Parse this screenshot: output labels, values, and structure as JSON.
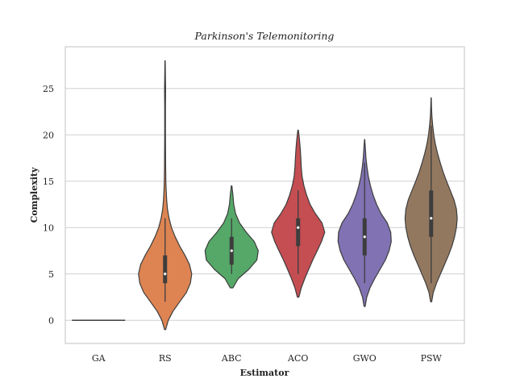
{
  "chart_data": {
    "type": "violin",
    "title": "Parkinson's Telemonitoring",
    "xlabel": "Estimator",
    "ylabel": "Complexity",
    "ylim": [
      -2.5,
      29.5
    ],
    "yticks": [
      0,
      5,
      10,
      15,
      20,
      25
    ],
    "grid": "horizontal",
    "categories": [
      "GA",
      "RS",
      "ABC",
      "ACO",
      "GWO",
      "PSW"
    ],
    "colors": [
      "#4c72b0",
      "#dd8452",
      "#55a868",
      "#c44e52",
      "#8172b3",
      "#937860"
    ],
    "series": [
      {
        "name": "GA",
        "min": 0,
        "q1": 0,
        "median": 0,
        "q3": 0,
        "max": 0,
        "kde_range": [
          0,
          0
        ],
        "density": [
          [
            0,
            1
          ]
        ]
      },
      {
        "name": "RS",
        "min": 2,
        "q1": 4,
        "median": 5,
        "q3": 7,
        "max": 11,
        "kde_range": [
          -1,
          28
        ],
        "density": [
          [
            -1,
            0.02
          ],
          [
            0,
            0.12
          ],
          [
            1,
            0.3
          ],
          [
            2,
            0.55
          ],
          [
            3,
            0.8
          ],
          [
            4,
            0.95
          ],
          [
            5,
            1.0
          ],
          [
            6,
            0.92
          ],
          [
            7,
            0.75
          ],
          [
            8,
            0.55
          ],
          [
            9,
            0.38
          ],
          [
            10,
            0.24
          ],
          [
            11,
            0.15
          ],
          [
            12,
            0.09
          ],
          [
            13,
            0.06
          ],
          [
            14,
            0.04
          ],
          [
            15,
            0.03
          ],
          [
            17,
            0.02
          ],
          [
            20,
            0.015
          ],
          [
            23,
            0.015
          ],
          [
            25,
            0.02
          ],
          [
            26,
            0.015
          ],
          [
            28,
            0.005
          ]
        ]
      },
      {
        "name": "ABC",
        "min": 5,
        "q1": 6,
        "median": 7.5,
        "q3": 9,
        "max": 11,
        "kde_range": [
          3.5,
          14.5
        ],
        "density": [
          [
            3.5,
            0.05
          ],
          [
            4.5,
            0.25
          ],
          [
            5.5,
            0.65
          ],
          [
            6.5,
            0.95
          ],
          [
            7.5,
            1.0
          ],
          [
            8.5,
            0.85
          ],
          [
            9.5,
            0.55
          ],
          [
            10.5,
            0.3
          ],
          [
            11.5,
            0.15
          ],
          [
            12.5,
            0.08
          ],
          [
            13.5,
            0.05
          ],
          [
            14.5,
            0.01
          ]
        ]
      },
      {
        "name": "ACO",
        "min": 5,
        "q1": 8,
        "median": 10,
        "q3": 11,
        "max": 14,
        "kde_range": [
          2.5,
          20.5
        ],
        "density": [
          [
            2.5,
            0.03
          ],
          [
            3.5,
            0.12
          ],
          [
            4.5,
            0.25
          ],
          [
            5.5,
            0.4
          ],
          [
            6.5,
            0.55
          ],
          [
            7.5,
            0.72
          ],
          [
            8.5,
            0.88
          ],
          [
            9.5,
            1.0
          ],
          [
            10.5,
            0.9
          ],
          [
            11.5,
            0.65
          ],
          [
            12.5,
            0.45
          ],
          [
            13.5,
            0.32
          ],
          [
            14.5,
            0.22
          ],
          [
            15.5,
            0.15
          ],
          [
            16.5,
            0.12
          ],
          [
            17.5,
            0.1
          ],
          [
            18.5,
            0.08
          ],
          [
            19.5,
            0.05
          ],
          [
            20.5,
            0.01
          ]
        ]
      },
      {
        "name": "GWO",
        "min": 4,
        "q1": 7,
        "median": 9,
        "q3": 11,
        "max": 17,
        "kde_range": [
          1.5,
          19.5
        ],
        "density": [
          [
            1.5,
            0.02
          ],
          [
            2.5,
            0.08
          ],
          [
            3.5,
            0.2
          ],
          [
            4.5,
            0.38
          ],
          [
            5.5,
            0.58
          ],
          [
            6.5,
            0.78
          ],
          [
            7.5,
            0.92
          ],
          [
            8.5,
            1.0
          ],
          [
            9.5,
            0.98
          ],
          [
            10.5,
            0.85
          ],
          [
            11.5,
            0.62
          ],
          [
            12.5,
            0.45
          ],
          [
            13.5,
            0.32
          ],
          [
            14.5,
            0.22
          ],
          [
            15.5,
            0.14
          ],
          [
            16.5,
            0.09
          ],
          [
            17.5,
            0.05
          ],
          [
            18.5,
            0.03
          ],
          [
            19.5,
            0.005
          ]
        ]
      },
      {
        "name": "PSW",
        "min": 4,
        "q1": 9,
        "median": 11,
        "q3": 14,
        "max": 21,
        "kde_range": [
          2,
          24
        ],
        "density": [
          [
            2,
            0.02
          ],
          [
            3,
            0.08
          ],
          [
            4,
            0.2
          ],
          [
            5,
            0.35
          ],
          [
            6,
            0.5
          ],
          [
            7,
            0.65
          ],
          [
            8,
            0.78
          ],
          [
            9,
            0.88
          ],
          [
            10,
            0.95
          ],
          [
            11,
            0.98
          ],
          [
            12,
            0.95
          ],
          [
            13,
            0.86
          ],
          [
            14,
            0.72
          ],
          [
            15,
            0.58
          ],
          [
            16,
            0.45
          ],
          [
            17,
            0.34
          ],
          [
            18,
            0.24
          ],
          [
            19,
            0.16
          ],
          [
            20,
            0.1
          ],
          [
            21,
            0.06
          ],
          [
            22,
            0.03
          ],
          [
            23,
            0.015
          ],
          [
            24,
            0.005
          ]
        ]
      }
    ]
  }
}
